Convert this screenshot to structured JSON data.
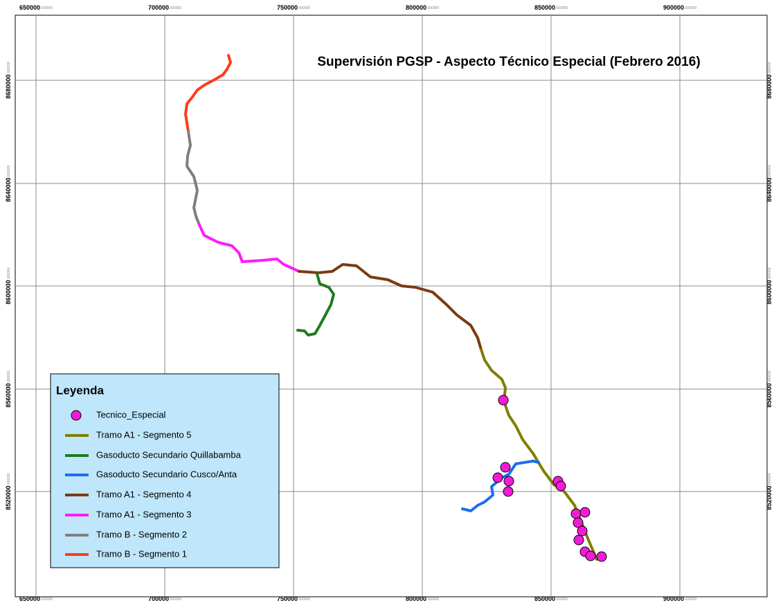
{
  "title": "Supervisión PGSP - Aspecto Técnico Especial (Febrero 2016)",
  "x_ticks": [
    "650000.000000",
    "700000.000000",
    "750000.000000",
    "800000.000000",
    "850000.000000",
    "900000.000000"
  ],
  "y_ticks": [
    "8680000.000000",
    "8640000.000000",
    "8600000.000000",
    "8560000.000000",
    "8520000.000000"
  ],
  "legend": {
    "title": "Leyenda",
    "items": [
      {
        "name": "Tecnico_Especial",
        "color": "#f21bd8"
      },
      {
        "name": "Tramo A1 - Segmento 5",
        "color": "#7f7f00"
      },
      {
        "name": "Gasoducto Secundario Quillabamba",
        "color": "#1f7a1f"
      },
      {
        "name": "Gasoducto Secundario Cusco/Anta",
        "color": "#1a6ef0"
      },
      {
        "name": "Tramo A1 - Segmento 4",
        "color": "#7a3b12"
      },
      {
        "name": "Tramo A1 - Segmento 3",
        "color": "#ff1aff"
      },
      {
        "name": "Tramo B - Segmento 2",
        "color": "#7f7f7f"
      },
      {
        "name": "Tramo B - Segmento 1",
        "color": "#ff3b1a"
      }
    ]
  }
}
